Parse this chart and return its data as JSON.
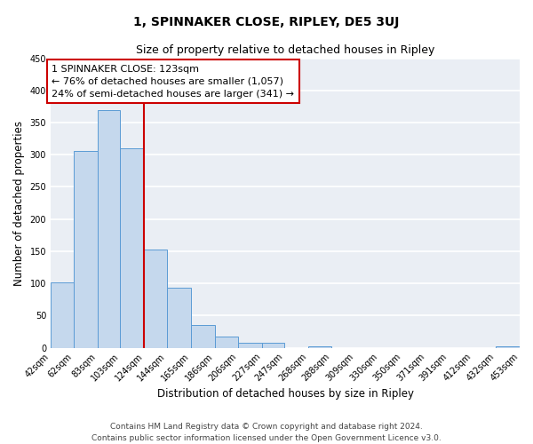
{
  "title": "1, SPINNAKER CLOSE, RIPLEY, DE5 3UJ",
  "subtitle": "Size of property relative to detached houses in Ripley",
  "xlabel": "Distribution of detached houses by size in Ripley",
  "ylabel": "Number of detached properties",
  "bar_edges": [
    42,
    62,
    83,
    103,
    124,
    144,
    165,
    186,
    206,
    227,
    247,
    268,
    288,
    309,
    330,
    350,
    371,
    391,
    412,
    432,
    453
  ],
  "bar_heights": [
    101,
    306,
    370,
    310,
    153,
    93,
    35,
    18,
    8,
    8,
    0,
    2,
    0,
    0,
    0,
    0,
    0,
    0,
    0,
    2
  ],
  "tick_labels": [
    "42sqm",
    "62sqm",
    "83sqm",
    "103sqm",
    "124sqm",
    "144sqm",
    "165sqm",
    "186sqm",
    "206sqm",
    "227sqm",
    "247sqm",
    "268sqm",
    "288sqm",
    "309sqm",
    "330sqm",
    "350sqm",
    "371sqm",
    "391sqm",
    "412sqm",
    "432sqm",
    "453sqm"
  ],
  "bar_color": "#c5d8ed",
  "bar_edge_color": "#5b9bd5",
  "vline_x": 124,
  "vline_color": "#cc0000",
  "annotation_line1": "1 SPINNAKER CLOSE: 123sqm",
  "annotation_line2": "← 76% of detached houses are smaller (1,057)",
  "annotation_line3": "24% of semi-detached houses are larger (341) →",
  "annotation_box_color": "#cc0000",
  "ylim": [
    0,
    450
  ],
  "yticks": [
    0,
    50,
    100,
    150,
    200,
    250,
    300,
    350,
    400,
    450
  ],
  "footer_line1": "Contains HM Land Registry data © Crown copyright and database right 2024.",
  "footer_line2": "Contains public sector information licensed under the Open Government Licence v3.0.",
  "bg_color": "#eaeef4",
  "grid_color": "#ffffff",
  "title_fontsize": 10,
  "subtitle_fontsize": 9,
  "axis_label_fontsize": 8.5,
  "tick_fontsize": 7,
  "annotation_fontsize": 8,
  "footer_fontsize": 6.5
}
